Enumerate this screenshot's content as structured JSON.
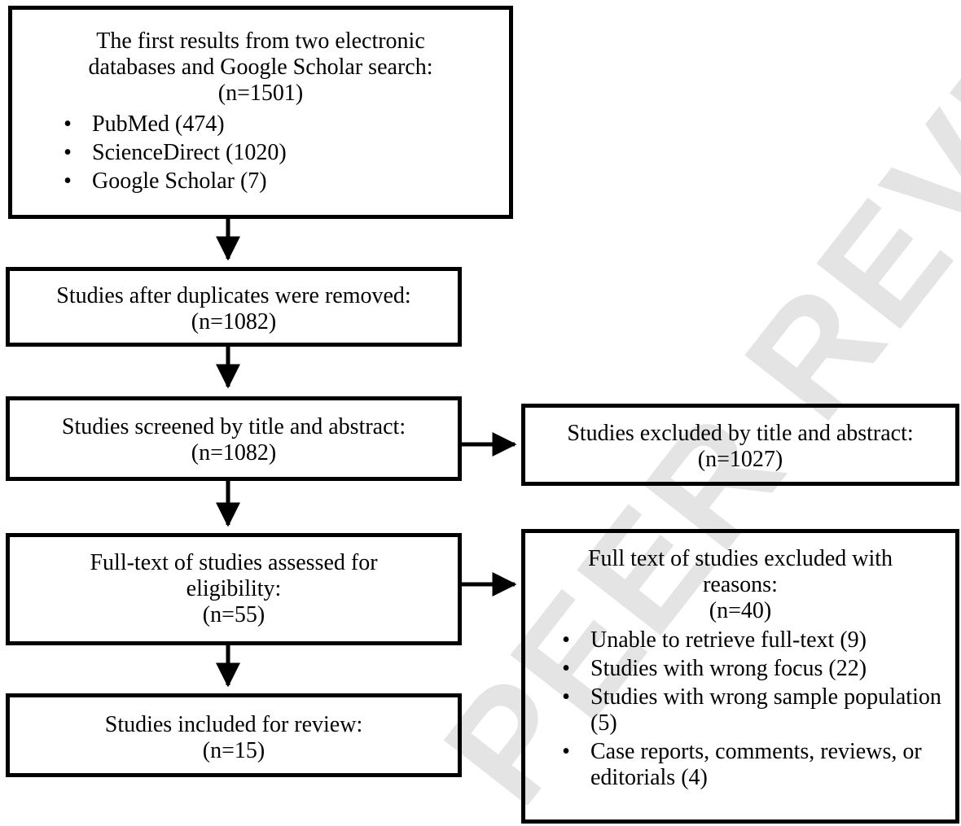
{
  "colors": {
    "line": "#000000",
    "watermark": "#d9d9d9"
  },
  "watermark_text": "PEER REVIEW",
  "boxes": {
    "initial": {
      "lines": [
        "The first results from two electronic",
        "databases and Google Scholar search:",
        "(n=1501)"
      ],
      "items": [
        "PubMed (474)",
        "ScienceDirect (1020)",
        "Google Scholar (7)"
      ]
    },
    "duplicates": {
      "lines": [
        "Studies after duplicates were removed:",
        "(n=1082)"
      ]
    },
    "screened": {
      "lines": [
        "Studies screened by title and abstract:",
        "(n=1082)"
      ]
    },
    "excluded_screening": {
      "lines": [
        "Studies excluded by title and abstract:",
        "(n=1027)"
      ]
    },
    "fulltext": {
      "lines": [
        "Full-text of studies assessed for",
        "eligibility:",
        "(n=55)"
      ]
    },
    "excluded_fulltext": {
      "lines": [
        "Full text of studies excluded with",
        "reasons:",
        "(n=40)"
      ],
      "items": [
        "Unable to retrieve full-text (9)",
        "Studies with wrong focus (22)",
        "Studies with wrong sample population (5)",
        "Case reports, comments, reviews, or editorials (4)"
      ]
    },
    "included": {
      "lines": [
        "Studies included for review:",
        "(n=15)"
      ]
    }
  },
  "bullet": "•"
}
